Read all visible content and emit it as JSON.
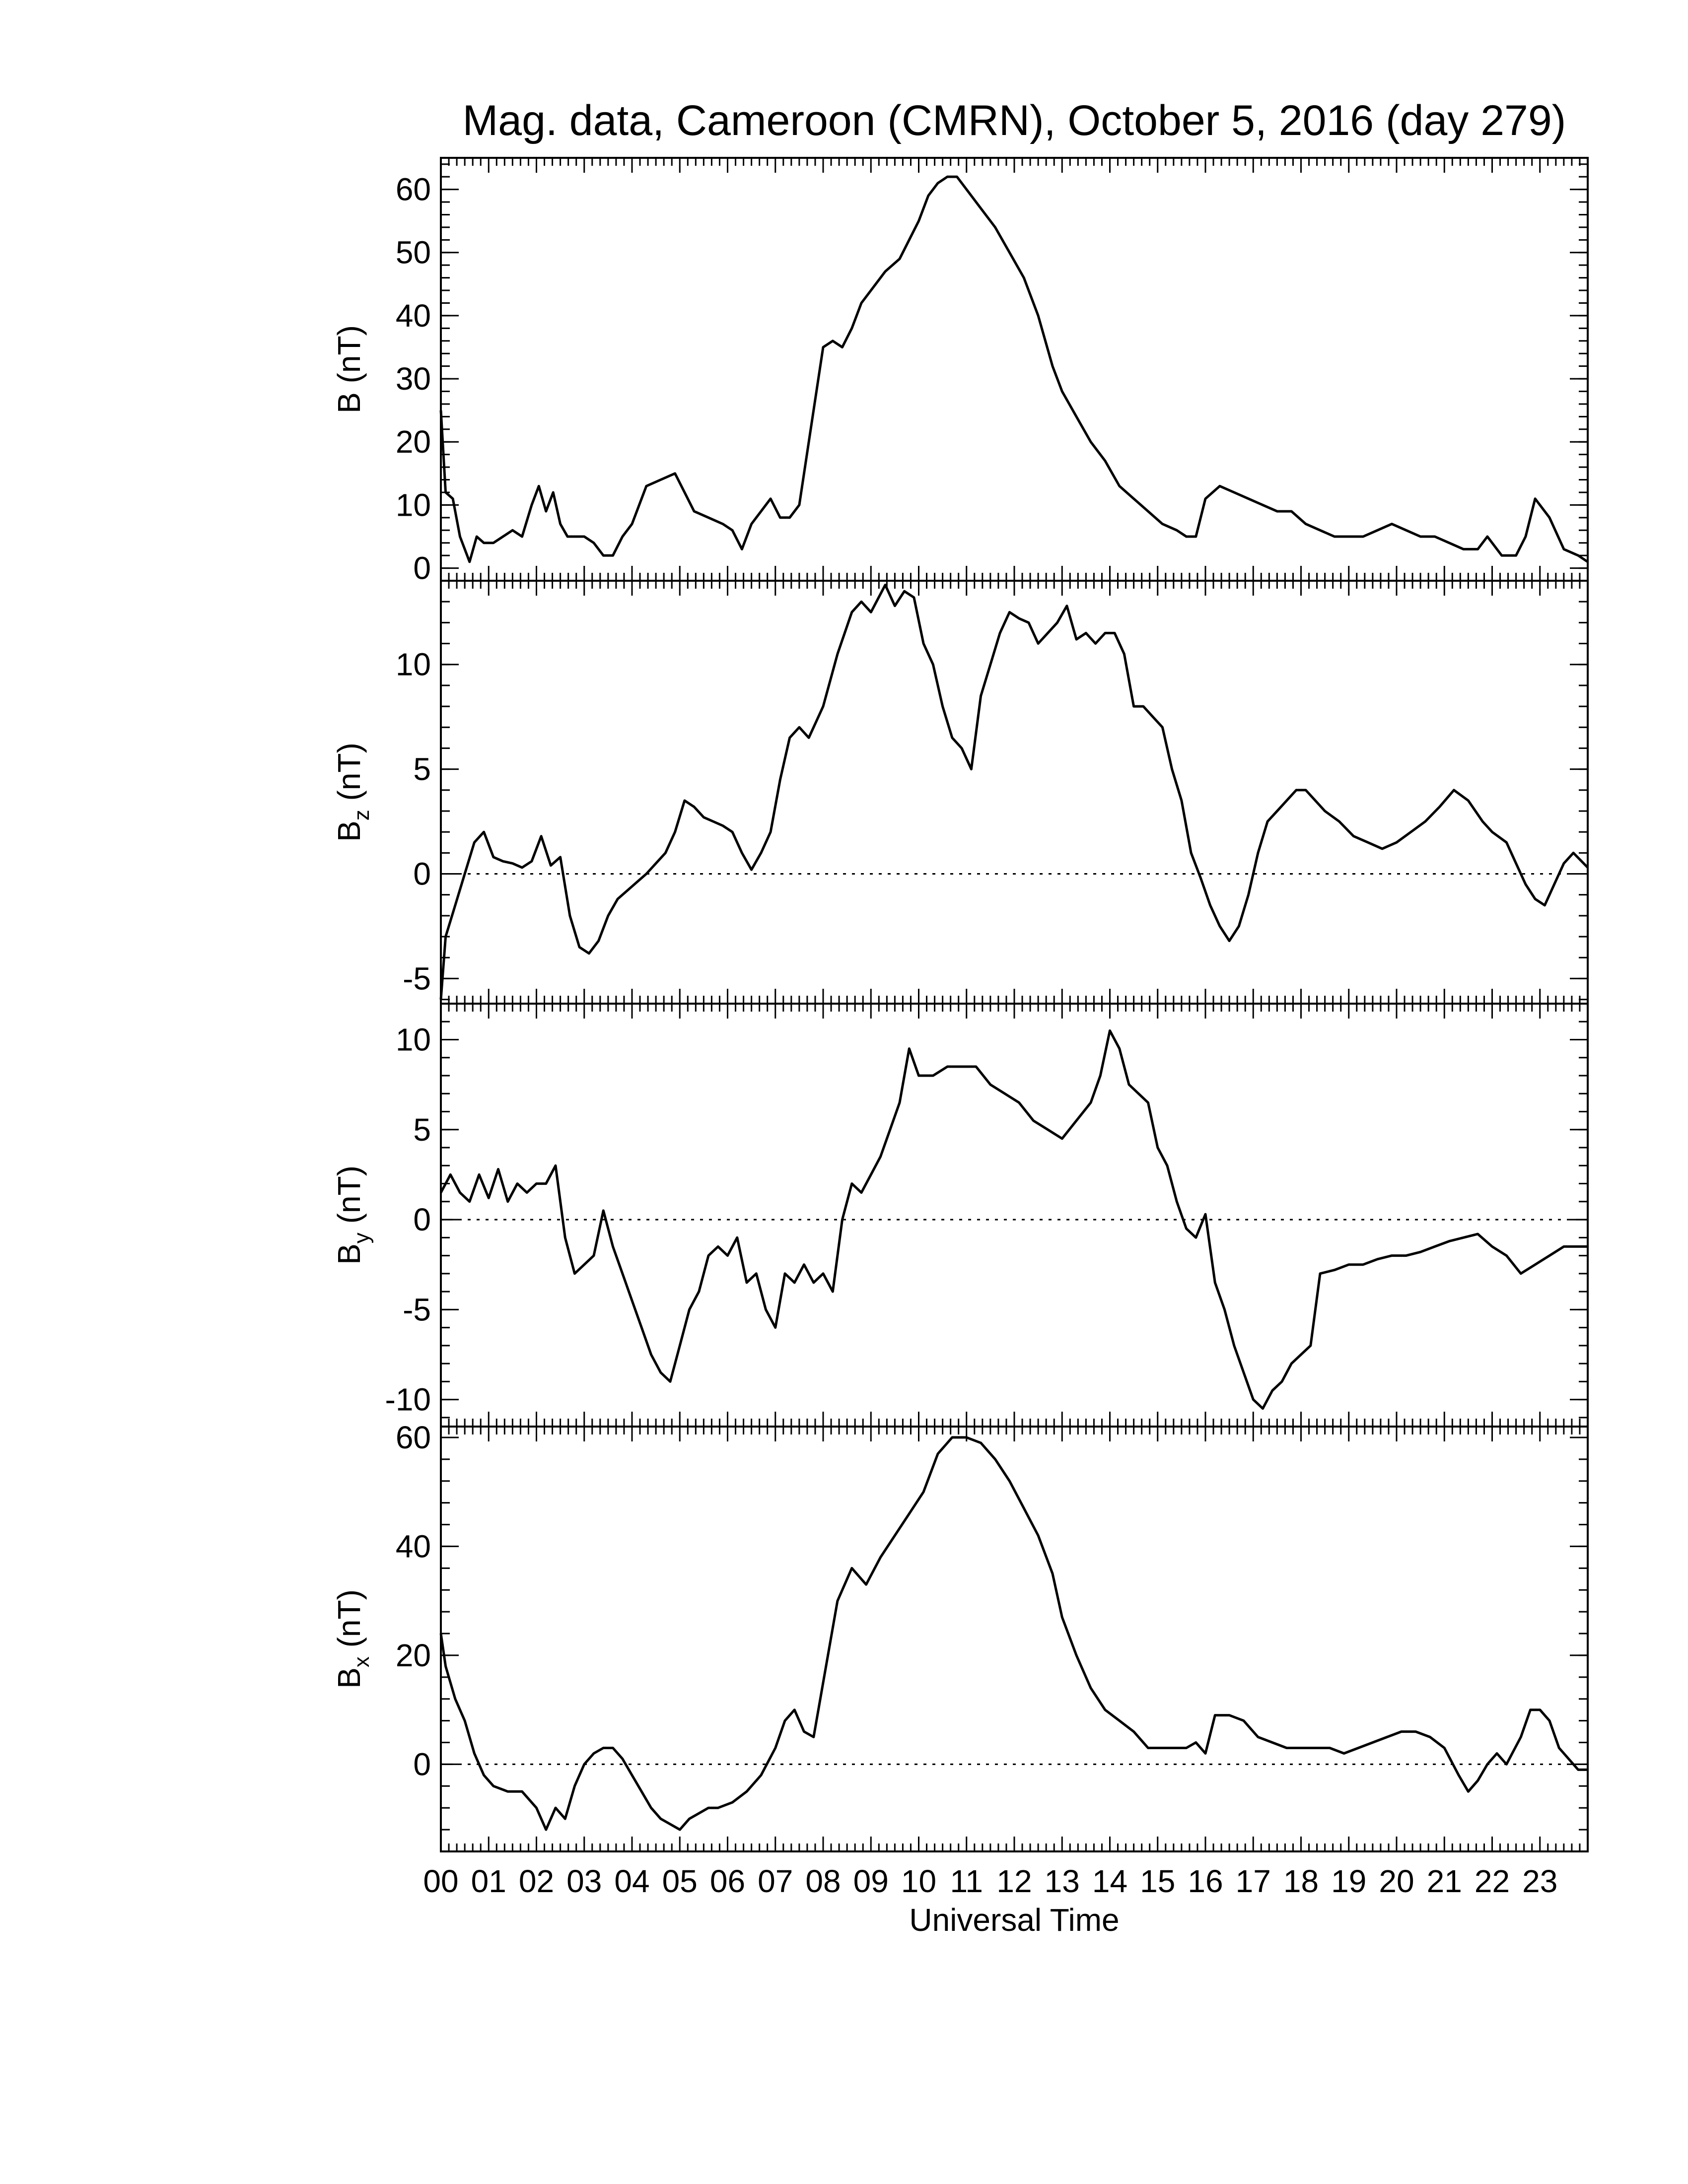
{
  "chart_data": {
    "type": "line",
    "title": "Mag. data, Cameroon (CMRN), October 5, 2016 (day 279)",
    "xlabel": "Universal Time",
    "x_tick_labels": [
      "00",
      "01",
      "02",
      "03",
      "04",
      "05",
      "06",
      "07",
      "08",
      "09",
      "10",
      "11",
      "12",
      "13",
      "14",
      "15",
      "16",
      "17",
      "18",
      "19",
      "20",
      "21",
      "22",
      "23"
    ],
    "xlim": [
      0,
      24
    ],
    "x_units": "hours UT",
    "grid": false,
    "panels": [
      {
        "id": "B",
        "ylabel": "B (nT)",
        "ylabel_main": "B",
        "ylabel_sub": "",
        "ylabel_unit": "(nT)",
        "ylim": [
          -2,
          65
        ],
        "yticks": [
          0,
          10,
          20,
          30,
          40,
          50,
          60
        ],
        "zero_line": false,
        "x": [
          0.0,
          0.1,
          0.25,
          0.4,
          0.6,
          0.75,
          0.9,
          1.1,
          1.3,
          1.5,
          1.7,
          1.9,
          2.05,
          2.2,
          2.35,
          2.5,
          2.65,
          2.8,
          3.0,
          3.2,
          3.4,
          3.6,
          3.8,
          4.0,
          4.3,
          4.6,
          4.9,
          5.1,
          5.3,
          5.6,
          5.9,
          6.1,
          6.3,
          6.5,
          6.7,
          6.9,
          7.1,
          7.3,
          7.5,
          7.7,
          8.0,
          8.2,
          8.4,
          8.6,
          8.8,
          9.0,
          9.3,
          9.6,
          9.8,
          10.0,
          10.2,
          10.4,
          10.6,
          10.8,
          11.0,
          11.3,
          11.6,
          11.9,
          12.2,
          12.5,
          12.8,
          13.0,
          13.3,
          13.6,
          13.9,
          14.2,
          14.5,
          14.8,
          15.1,
          15.4,
          15.6,
          15.8,
          16.0,
          16.3,
          16.6,
          16.9,
          17.2,
          17.5,
          17.8,
          18.1,
          18.4,
          18.7,
          19.0,
          19.3,
          19.6,
          19.9,
          20.2,
          20.5,
          20.8,
          21.1,
          21.4,
          21.7,
          21.9,
          22.2,
          22.5,
          22.7,
          22.9,
          23.2,
          23.5,
          23.8,
          24.0
        ],
        "y": [
          25,
          12,
          11,
          5,
          1,
          5,
          4,
          4,
          5,
          6,
          5,
          10,
          13,
          9,
          12,
          7,
          5,
          5,
          5,
          4,
          2,
          2,
          5,
          7,
          13,
          14,
          15,
          12,
          9,
          8,
          7,
          6,
          3,
          7,
          9,
          11,
          8,
          8,
          10,
          20,
          35,
          36,
          35,
          38,
          42,
          44,
          47,
          49,
          52,
          55,
          59,
          61,
          62,
          62,
          60,
          57,
          54,
          50,
          46,
          40,
          32,
          28,
          24,
          20,
          17,
          13,
          11,
          9,
          7,
          6,
          5,
          5,
          11,
          13,
          12,
          11,
          10,
          9,
          9,
          7,
          6,
          5,
          5,
          5,
          6,
          7,
          6,
          5,
          5,
          4,
          3,
          3,
          5,
          2,
          2,
          5,
          11,
          8,
          3,
          2,
          1
        ]
      },
      {
        "id": "Bz",
        "ylabel": "Bz (nT)",
        "ylabel_main": "B",
        "ylabel_sub": "z",
        "ylabel_unit": "(nT)",
        "ylim": [
          -6.2,
          14.0
        ],
        "yticks": [
          -5,
          0,
          5,
          10
        ],
        "zero_line": true,
        "x": [
          0.0,
          0.1,
          0.3,
          0.5,
          0.7,
          0.9,
          1.1,
          1.3,
          1.5,
          1.7,
          1.9,
          2.1,
          2.3,
          2.5,
          2.7,
          2.9,
          3.1,
          3.3,
          3.5,
          3.7,
          3.9,
          4.1,
          4.3,
          4.5,
          4.7,
          4.9,
          5.1,
          5.3,
          5.5,
          5.7,
          5.9,
          6.1,
          6.3,
          6.5,
          6.7,
          6.9,
          7.1,
          7.3,
          7.5,
          7.7,
          8.0,
          8.3,
          8.6,
          8.8,
          9.0,
          9.3,
          9.5,
          9.7,
          9.9,
          10.1,
          10.3,
          10.5,
          10.7,
          10.9,
          11.1,
          11.3,
          11.5,
          11.7,
          11.9,
          12.1,
          12.3,
          12.5,
          12.7,
          12.9,
          13.1,
          13.3,
          13.5,
          13.7,
          13.9,
          14.1,
          14.3,
          14.5,
          14.7,
          14.9,
          15.1,
          15.3,
          15.5,
          15.7,
          15.9,
          16.1,
          16.3,
          16.5,
          16.7,
          16.9,
          17.1,
          17.3,
          17.5,
          17.7,
          17.9,
          18.1,
          18.3,
          18.5,
          18.8,
          19.1,
          19.4,
          19.7,
          20.0,
          20.3,
          20.6,
          20.9,
          21.2,
          21.5,
          21.8,
          22.0,
          22.3,
          22.5,
          22.7,
          22.9,
          23.1,
          23.3,
          23.5,
          23.7,
          24.0
        ],
        "y": [
          -6,
          -3,
          -1.5,
          0,
          1.5,
          2.0,
          0.8,
          0.6,
          0.5,
          0.3,
          0.6,
          1.8,
          0.4,
          0.8,
          -2,
          -3.5,
          -3.8,
          -3.2,
          -2,
          -1.2,
          -0.8,
          -0.4,
          0,
          0.5,
          1,
          2,
          3.5,
          3.2,
          2.7,
          2.5,
          2.3,
          2.0,
          1.0,
          0.2,
          1.0,
          2.0,
          4.5,
          6.5,
          7.0,
          6.5,
          8.0,
          10.5,
          12.5,
          13.0,
          12.5,
          13.8,
          12.8,
          13.5,
          13.2,
          11.0,
          10.0,
          8.0,
          6.5,
          6.0,
          5.0,
          8.5,
          10.0,
          11.5,
          12.5,
          12.2,
          12.0,
          11.0,
          11.5,
          12.0,
          12.8,
          11.2,
          11.5,
          11.0,
          11.5,
          11.5,
          10.5,
          8.0,
          8.0,
          7.5,
          7.0,
          5.0,
          3.5,
          1.0,
          -0.2,
          -1.5,
          -2.5,
          -3.2,
          -2.5,
          -1.0,
          1.0,
          2.5,
          3.0,
          3.5,
          4.0,
          4.0,
          3.5,
          3.0,
          2.5,
          1.8,
          1.5,
          1.2,
          1.5,
          2.0,
          2.5,
          3.2,
          4.0,
          3.5,
          2.5,
          2.0,
          1.5,
          0.5,
          -0.5,
          -1.2,
          -1.5,
          -0.5,
          0.5,
          1.0,
          0.3
        ]
      },
      {
        "id": "By",
        "ylabel": "By (nT)",
        "ylabel_main": "B",
        "ylabel_sub": "y",
        "ylabel_unit": "(nT)",
        "ylim": [
          -11.5,
          12.0
        ],
        "yticks": [
          -10,
          -5,
          0,
          5,
          10
        ],
        "zero_line": true,
        "x": [
          0.0,
          0.2,
          0.4,
          0.6,
          0.8,
          1.0,
          1.2,
          1.4,
          1.6,
          1.8,
          2.0,
          2.2,
          2.4,
          2.6,
          2.8,
          3.0,
          3.2,
          3.4,
          3.6,
          3.8,
          4.0,
          4.2,
          4.4,
          4.6,
          4.8,
          5.0,
          5.2,
          5.4,
          5.6,
          5.8,
          6.0,
          6.2,
          6.4,
          6.6,
          6.8,
          7.0,
          7.2,
          7.4,
          7.6,
          7.8,
          8.0,
          8.2,
          8.4,
          8.6,
          8.8,
          9.0,
          9.2,
          9.4,
          9.6,
          9.8,
          10.0,
          10.3,
          10.6,
          10.9,
          11.2,
          11.5,
          11.8,
          12.1,
          12.4,
          12.7,
          13.0,
          13.3,
          13.6,
          13.8,
          14.0,
          14.2,
          14.4,
          14.6,
          14.8,
          15.0,
          15.2,
          15.4,
          15.6,
          15.8,
          16.0,
          16.2,
          16.4,
          16.6,
          16.8,
          17.0,
          17.2,
          17.4,
          17.6,
          17.8,
          18.0,
          18.2,
          18.4,
          18.7,
          19.0,
          19.3,
          19.6,
          19.9,
          20.2,
          20.5,
          20.8,
          21.1,
          21.4,
          21.7,
          22.0,
          22.3,
          22.6,
          22.9,
          23.2,
          23.5,
          23.8,
          24.0
        ],
        "y": [
          1.5,
          2.5,
          1.5,
          1.0,
          2.5,
          1.2,
          2.8,
          1.0,
          2.0,
          1.5,
          2.0,
          2.0,
          3.0,
          -1.0,
          -3.0,
          -2.5,
          -2.0,
          0.5,
          -1.5,
          -3.0,
          -4.5,
          -6.0,
          -7.5,
          -8.5,
          -9.0,
          -7.0,
          -5.0,
          -4.0,
          -2.0,
          -1.5,
          -2.0,
          -1.0,
          -3.5,
          -3.0,
          -5.0,
          -6.0,
          -3.0,
          -3.5,
          -2.5,
          -3.5,
          -3.0,
          -4.0,
          0.0,
          2.0,
          1.5,
          2.5,
          3.5,
          5.0,
          6.5,
          9.5,
          8.0,
          8.0,
          8.5,
          8.5,
          8.5,
          7.5,
          7.0,
          6.5,
          5.5,
          5.0,
          4.5,
          5.5,
          6.5,
          8.0,
          10.5,
          9.5,
          7.5,
          7.0,
          6.5,
          4.0,
          3.0,
          1.0,
          -0.5,
          -1.0,
          0.3,
          -3.5,
          -5.0,
          -7.0,
          -8.5,
          -10.0,
          -10.5,
          -9.5,
          -9.0,
          -8.0,
          -7.5,
          -7.0,
          -3.0,
          -2.8,
          -2.5,
          -2.5,
          -2.2,
          -2.0,
          -2.0,
          -1.8,
          -1.5,
          -1.2,
          -1.0,
          -0.8,
          -1.5,
          -2.0,
          -3.0,
          -2.5,
          -2.0,
          -1.5,
          -1.5,
          -1.5
        ]
      },
      {
        "id": "Bx",
        "ylabel": "Bx (nT)",
        "ylabel_main": "B",
        "ylabel_sub": "x",
        "ylabel_unit": "(nT)",
        "ylim": [
          -16,
          62
        ],
        "yticks": [
          0,
          20,
          40,
          60
        ],
        "zero_line": true,
        "x": [
          0.0,
          0.1,
          0.3,
          0.5,
          0.7,
          0.9,
          1.1,
          1.4,
          1.7,
          2.0,
          2.2,
          2.4,
          2.6,
          2.8,
          3.0,
          3.2,
          3.4,
          3.6,
          3.8,
          4.0,
          4.2,
          4.4,
          4.6,
          4.8,
          5.0,
          5.2,
          5.4,
          5.6,
          5.8,
          6.1,
          6.4,
          6.7,
          7.0,
          7.2,
          7.4,
          7.6,
          7.8,
          8.0,
          8.3,
          8.6,
          8.9,
          9.2,
          9.5,
          9.8,
          10.1,
          10.4,
          10.7,
          11.0,
          11.3,
          11.6,
          11.9,
          12.2,
          12.5,
          12.8,
          13.0,
          13.3,
          13.6,
          13.9,
          14.2,
          14.5,
          14.8,
          15.1,
          15.4,
          15.6,
          15.8,
          16.0,
          16.2,
          16.5,
          16.8,
          17.1,
          17.4,
          17.7,
          18.0,
          18.3,
          18.6,
          18.9,
          19.2,
          19.5,
          19.8,
          20.1,
          20.4,
          20.7,
          21.0,
          21.3,
          21.5,
          21.7,
          21.9,
          22.1,
          22.3,
          22.6,
          22.8,
          23.0,
          23.2,
          23.4,
          23.6,
          23.8,
          24.0
        ],
        "y": [
          24,
          18,
          12,
          8,
          2,
          -2,
          -4,
          -5,
          -5,
          -8,
          -12,
          -8,
          -10,
          -4,
          0,
          2,
          3,
          3,
          1,
          -2,
          -5,
          -8,
          -10,
          -11,
          -12,
          -10,
          -9,
          -8,
          -8,
          -7,
          -5,
          -2,
          3,
          8,
          10,
          6,
          5,
          15,
          30,
          36,
          33,
          38,
          42,
          46,
          50,
          57,
          60,
          60,
          59,
          56,
          52,
          47,
          42,
          35,
          27,
          20,
          14,
          10,
          8,
          6,
          3,
          3,
          3,
          3,
          4,
          2,
          9,
          9,
          8,
          5,
          4,
          3,
          3,
          3,
          3,
          2,
          3,
          4,
          5,
          6,
          6,
          5,
          3,
          -2,
          -5,
          -3,
          0,
          2,
          0,
          5,
          10,
          10,
          8,
          3,
          1,
          -1,
          -1
        ]
      }
    ]
  }
}
